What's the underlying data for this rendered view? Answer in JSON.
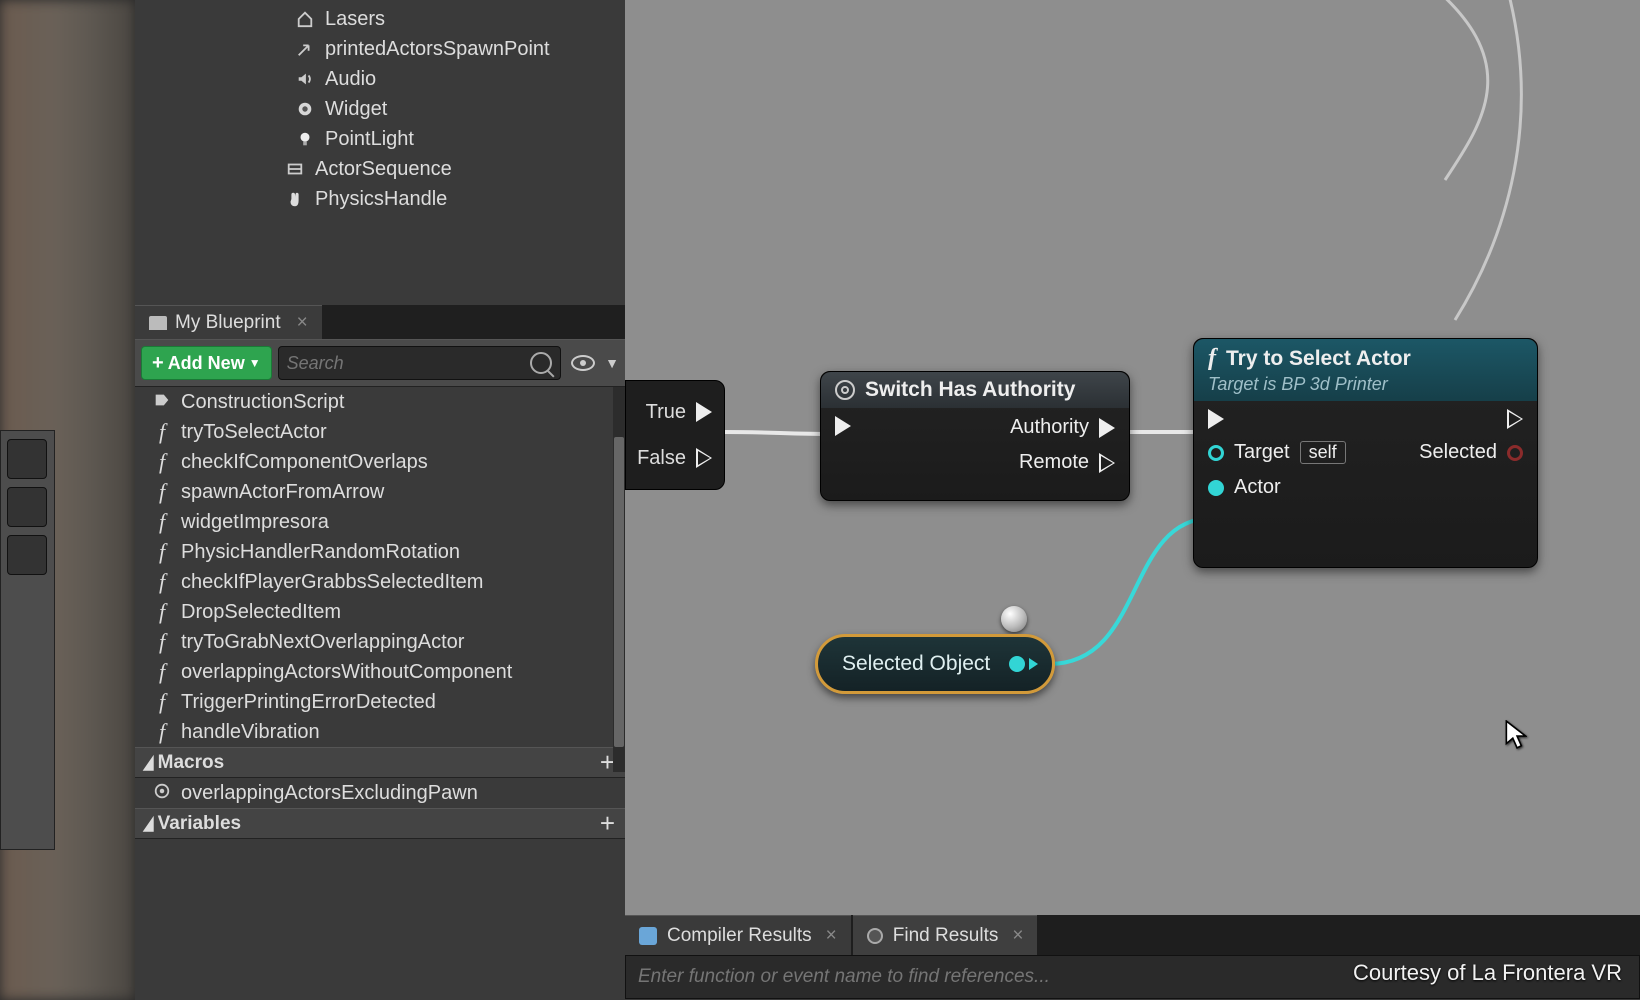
{
  "components": [
    {
      "icon": "home",
      "label": "Lasers"
    },
    {
      "icon": "arrow",
      "label": "printedActorsSpawnPoint"
    },
    {
      "icon": "speaker",
      "label": "Audio"
    },
    {
      "icon": "widget",
      "label": "Widget"
    },
    {
      "icon": "light",
      "label": "PointLight"
    },
    {
      "icon": "film",
      "label": "ActorSequence",
      "lvl": 1
    },
    {
      "icon": "hand",
      "label": "PhysicsHandle",
      "lvl": 1
    }
  ],
  "tab": {
    "title": "My Blueprint"
  },
  "bar": {
    "addnew": "Add New",
    "search_placeholder": "Search"
  },
  "functions": [
    {
      "t": "graph",
      "label": "ConstructionScript"
    },
    {
      "t": "f",
      "label": "tryToSelectActor"
    },
    {
      "t": "f",
      "label": "checkIfComponentOverlaps"
    },
    {
      "t": "f",
      "label": "spawnActorFromArrow"
    },
    {
      "t": "f",
      "label": "widgetImpresora"
    },
    {
      "t": "f",
      "label": "PhysicHandlerRandomRotation"
    },
    {
      "t": "f",
      "label": "checkIfPlayerGrabbsSelectedItem"
    },
    {
      "t": "f",
      "label": "DropSelectedItem"
    },
    {
      "t": "f",
      "label": "tryToGrabNextOverlappingActor"
    },
    {
      "t": "f",
      "label": "overlappingActorsWithoutComponent"
    },
    {
      "t": "f",
      "label": "TriggerPrintingErrorDetected"
    },
    {
      "t": "f",
      "label": "handleVibration"
    }
  ],
  "macros": {
    "title": "Macros",
    "items": [
      {
        "label": "overlappingActorsExcludingPawn"
      }
    ]
  },
  "variables": {
    "title": "Variables"
  },
  "boolnode": {
    "true": "True",
    "false": "False"
  },
  "switch": {
    "title": "Switch Has Authority",
    "out1": "Authority",
    "out2": "Remote"
  },
  "trynode": {
    "title": "Try to Select Actor",
    "subtitle": "Target is BP 3d Printer",
    "target": "Target",
    "self": "self",
    "actor": "Actor",
    "selected": "Selected"
  },
  "varnode": {
    "label": "Selected Object"
  },
  "bottom": {
    "tab1": "Compiler Results",
    "tab2": "Find Results",
    "search_placeholder": "Enter function or event name to find references..."
  },
  "credit": "Courtesy of La Frontera VR",
  "colors": {
    "wire_exec": "#e8e8e8",
    "wire_data": "#38d8d8"
  }
}
